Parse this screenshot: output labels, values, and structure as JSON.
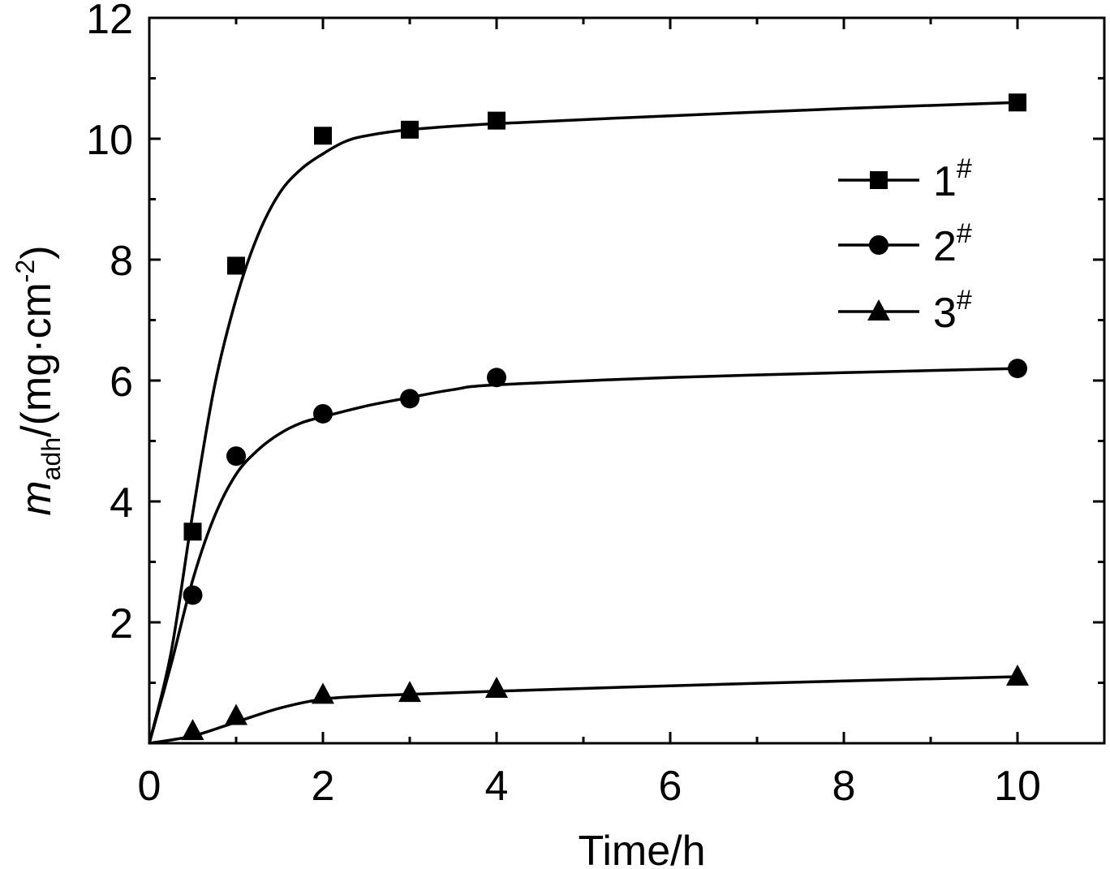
{
  "chart_data": {
    "type": "scatter",
    "xlabel": "Time/h",
    "ylabel": {
      "var": "m",
      "sub": "adh",
      "unit_pre": "/(mg·cm",
      "unit_sup": "-2",
      "unit_post": ")"
    },
    "xlim": [
      0,
      11
    ],
    "ylim": [
      0,
      12
    ],
    "xticks": [
      0,
      2,
      4,
      6,
      8,
      10
    ],
    "xtick_labels": [
      "0",
      "2",
      "4",
      "6",
      "8",
      "10"
    ],
    "yticks": [
      2,
      4,
      6,
      8,
      10,
      12
    ],
    "ytick_labels": [
      "2",
      "4",
      "6",
      "8",
      "10",
      "12"
    ],
    "grid": false,
    "legend_position": "top-right",
    "series": [
      {
        "name": "1",
        "name_sup": "#",
        "marker": "square",
        "x": [
          0.5,
          1,
          2,
          3,
          4,
          10
        ],
        "y": [
          3.5,
          7.9,
          10.05,
          10.15,
          10.3,
          10.6
        ],
        "fit_x": [
          0,
          0.25,
          0.5,
          0.75,
          1,
          1.25,
          1.5,
          1.75,
          2,
          2.25,
          2.5,
          3,
          4,
          6,
          8,
          10
        ],
        "fit_y": [
          0,
          1.5,
          3.8,
          5.9,
          7.35,
          8.4,
          9.1,
          9.5,
          9.75,
          9.95,
          10.05,
          10.15,
          10.25,
          10.38,
          10.5,
          10.6
        ]
      },
      {
        "name": "2",
        "name_sup": "#",
        "marker": "circle",
        "x": [
          0.5,
          1,
          2,
          3,
          4,
          10
        ],
        "y": [
          2.45,
          4.75,
          5.45,
          5.7,
          6.05,
          6.2
        ],
        "fit_x": [
          0,
          0.25,
          0.5,
          0.75,
          1,
          1.25,
          1.5,
          1.75,
          2,
          2.5,
          3,
          3.5,
          4,
          6,
          8,
          10
        ],
        "fit_y": [
          0,
          1.3,
          2.7,
          3.75,
          4.45,
          4.85,
          5.12,
          5.3,
          5.4,
          5.58,
          5.72,
          5.85,
          5.93,
          6.05,
          6.13,
          6.2
        ]
      },
      {
        "name": "3",
        "name_sup": "#",
        "marker": "triangle",
        "x": [
          0.5,
          1,
          2,
          3,
          4,
          10
        ],
        "y": [
          0.2,
          0.45,
          0.8,
          0.83,
          0.9,
          1.1
        ],
        "fit_x": [
          0,
          0.5,
          1,
          1.5,
          2,
          2.5,
          3,
          4,
          6,
          8,
          10
        ],
        "fit_y": [
          0,
          0.12,
          0.35,
          0.58,
          0.73,
          0.78,
          0.81,
          0.86,
          0.95,
          1.03,
          1.1
        ]
      }
    ]
  }
}
